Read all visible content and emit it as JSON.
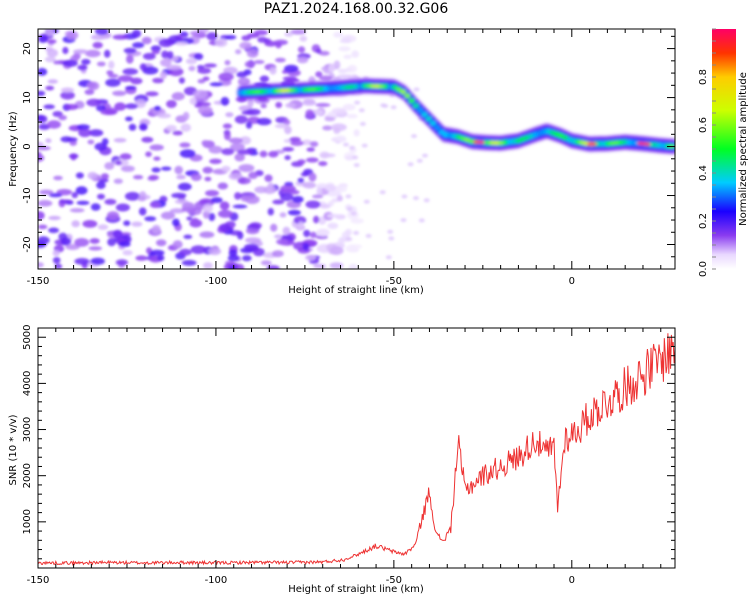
{
  "title": "PAZ1.2024.168.00.32.G06",
  "chart_data": [
    {
      "type": "heatmap",
      "title": "PAZ1.2024.168.00.32.G06",
      "xlabel": "Height of straight line (km)",
      "ylabel": "Frequency (Hz)",
      "xlim": [
        -150,
        29
      ],
      "ylim": [
        -25,
        24
      ],
      "x_ticks": [
        -150,
        -100,
        -50,
        0
      ],
      "y_ticks": [
        -20,
        -10,
        0,
        10,
        20
      ],
      "colorbar": {
        "label": "Normalized spectral amplitude",
        "range": [
          0,
          1
        ],
        "ticks": [
          0.0,
          0.2,
          0.4,
          0.6,
          0.8
        ]
      },
      "ridge": {
        "x": [
          -93,
          -85,
          -75,
          -65,
          -58,
          -50,
          -47,
          -44,
          -40,
          -36,
          -32,
          -28,
          -24,
          -20,
          -15,
          -10,
          -7,
          -3,
          0,
          5,
          10,
          15,
          20,
          25,
          29
        ],
        "y": [
          11,
          11.3,
          11.6,
          12,
          12.4,
          12.2,
          11,
          8.5,
          5.5,
          2.5,
          2,
          1,
          0.8,
          0.7,
          1.2,
          2.5,
          3.2,
          2.2,
          1.2,
          0.5,
          0.6,
          0.9,
          0.6,
          0.2,
          0
        ],
        "peak_amplitude": 1.0
      },
      "noise_region_x": [
        -150,
        -60
      ],
      "grid": false
    },
    {
      "type": "line",
      "xlabel": "Height of straight line (km)",
      "ylabel": "SNR (10 * v/v)",
      "xlim": [
        -150,
        29
      ],
      "ylim": [
        0,
        5200
      ],
      "x_ticks": [
        -150,
        -100,
        -50,
        0
      ],
      "y_ticks": [
        1000,
        2000,
        3000,
        4000,
        5000
      ],
      "color": "#ee3333",
      "series": [
        {
          "x": [
            -150,
            -140,
            -130,
            -120,
            -110,
            -100,
            -90,
            -80,
            -70,
            -64,
            -60,
            -55,
            -50,
            -47,
            -44,
            -42,
            -40,
            -38,
            -36,
            -34,
            -32,
            -30,
            -28,
            -25,
            -20,
            -15,
            -10,
            -8,
            -5,
            -4,
            -2,
            0,
            2,
            5,
            8,
            10,
            15,
            20,
            25,
            29
          ],
          "y": [
            110,
            110,
            120,
            110,
            120,
            110,
            120,
            120,
            130,
            180,
            300,
            480,
            350,
            300,
            500,
            1100,
            1650,
            700,
            600,
            850,
            2700,
            1700,
            1800,
            2000,
            2200,
            2400,
            2800,
            2500,
            2600,
            1300,
            2800,
            2900,
            3000,
            3300,
            3500,
            3600,
            3900,
            4200,
            4500,
            4800
          ]
        }
      ],
      "grid": false
    }
  ]
}
